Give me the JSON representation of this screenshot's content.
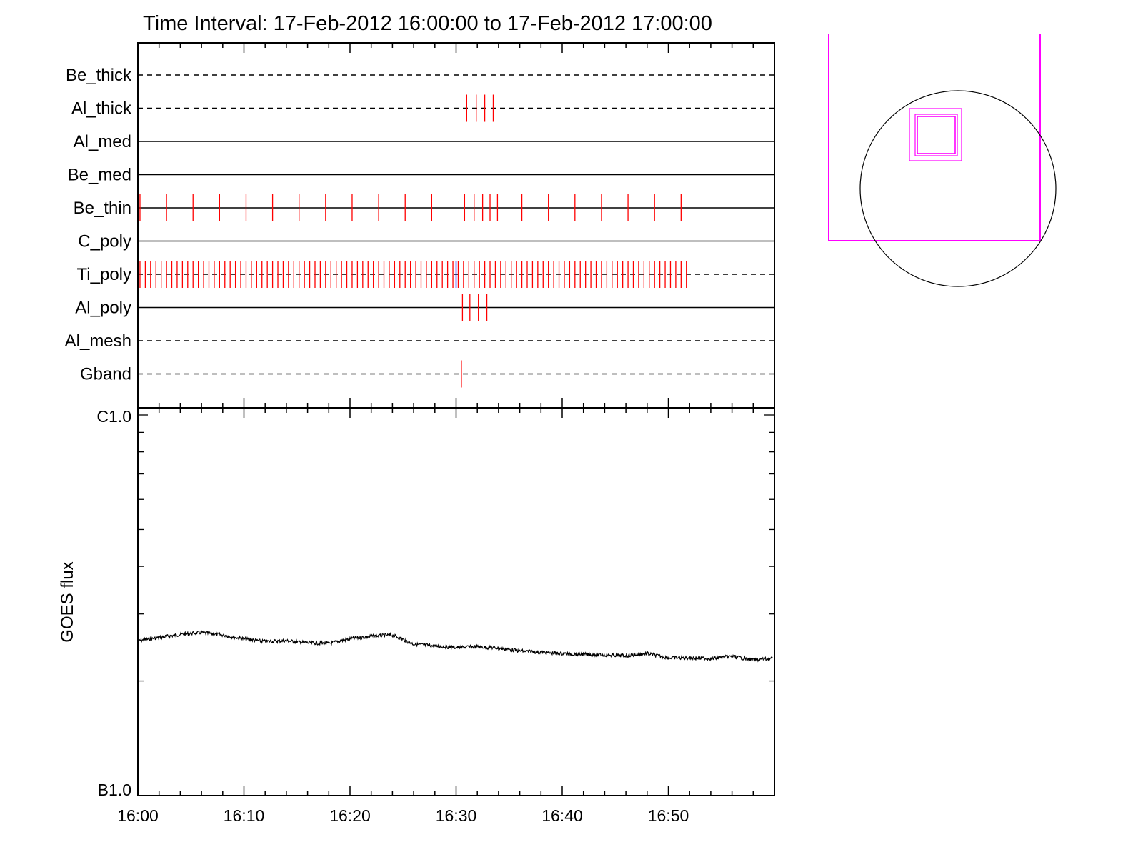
{
  "chart_data": [
    {
      "type": "timeline",
      "title": "Time Interval: 17-Feb-2012 16:00:00 to 17-Feb-2012 17:00:00",
      "xlim": [
        "16:00",
        "17:00"
      ],
      "x_unit": "minutes after 16:00",
      "rows": [
        {
          "label": "Be_thick",
          "style": "dashed",
          "events": []
        },
        {
          "label": "Al_thick",
          "style": "dashed",
          "events": [
            31.0,
            31.9,
            32.7,
            33.5
          ]
        },
        {
          "label": "Al_med",
          "style": "solid",
          "events": []
        },
        {
          "label": "Be_med",
          "style": "solid",
          "events": []
        },
        {
          "label": "Be_thin",
          "style": "solid",
          "events": [
            0.2,
            2.7,
            5.2,
            7.7,
            10.2,
            12.7,
            15.2,
            17.7,
            20.2,
            22.7,
            25.2,
            27.7,
            30.8,
            31.7,
            32.5,
            33.2,
            33.9,
            36.2,
            38.7,
            41.2,
            43.7,
            46.2,
            48.7,
            51.2
          ]
        },
        {
          "label": "C_poly",
          "style": "solid",
          "events": []
        },
        {
          "label": "Ti_poly",
          "style": "dashed",
          "events_pattern": "evenly spaced red markers every ~0.5 min from 0.2 to 51.7",
          "event_range": [
            0.2,
            51.7
          ],
          "event_step": 0.5,
          "highlight": [
            {
              "t": 30.0,
              "color": "#0000ff"
            }
          ]
        },
        {
          "label": "Al_poly",
          "style": "solid",
          "events": [
            30.6,
            31.3,
            32.1,
            32.9
          ]
        },
        {
          "label": "Al_mesh",
          "style": "dashed",
          "events": []
        },
        {
          "label": "Gband",
          "style": "dashed",
          "events": [
            30.5
          ]
        }
      ],
      "event_color": "#ff0000"
    },
    {
      "type": "line",
      "ylabel": "GOES flux",
      "yticks": [
        "C1.0",
        "B1.0"
      ],
      "y_scale": "log",
      "ylim": [
        1e-06,
        1e-05
      ],
      "x_tick_labels": [
        "16:00",
        "16:10",
        "16:20",
        "16:30",
        "16:40",
        "16:50"
      ],
      "xlim": [
        0,
        60
      ],
      "series": [
        {
          "x": [
            0,
            2,
            4,
            6,
            8,
            10,
            12,
            14,
            16,
            18,
            20,
            22,
            24,
            26,
            28,
            30,
            32,
            34,
            36,
            38,
            40,
            42,
            44,
            46,
            48,
            50,
            52,
            54,
            56,
            58,
            59.8
          ],
          "y": [
            2.55e-06,
            2.6e-06,
            2.65e-06,
            2.68e-06,
            2.64e-06,
            2.58e-06,
            2.54e-06,
            2.55e-06,
            2.52e-06,
            2.51e-06,
            2.58e-06,
            2.62e-06,
            2.64e-06,
            2.5e-06,
            2.47e-06,
            2.45e-06,
            2.46e-06,
            2.44e-06,
            2.4e-06,
            2.38e-06,
            2.36e-06,
            2.35e-06,
            2.34e-06,
            2.33e-06,
            2.36e-06,
            2.3e-06,
            2.3e-06,
            2.29e-06,
            2.32e-06,
            2.27e-06,
            2.29e-06
          ]
        }
      ]
    },
    {
      "type": "diagram",
      "shapes": [
        "fov-frame",
        "solar-disk",
        "observation-boxes"
      ],
      "colors": {
        "frame": "#ff00ff",
        "disk": "#000000"
      }
    }
  ]
}
